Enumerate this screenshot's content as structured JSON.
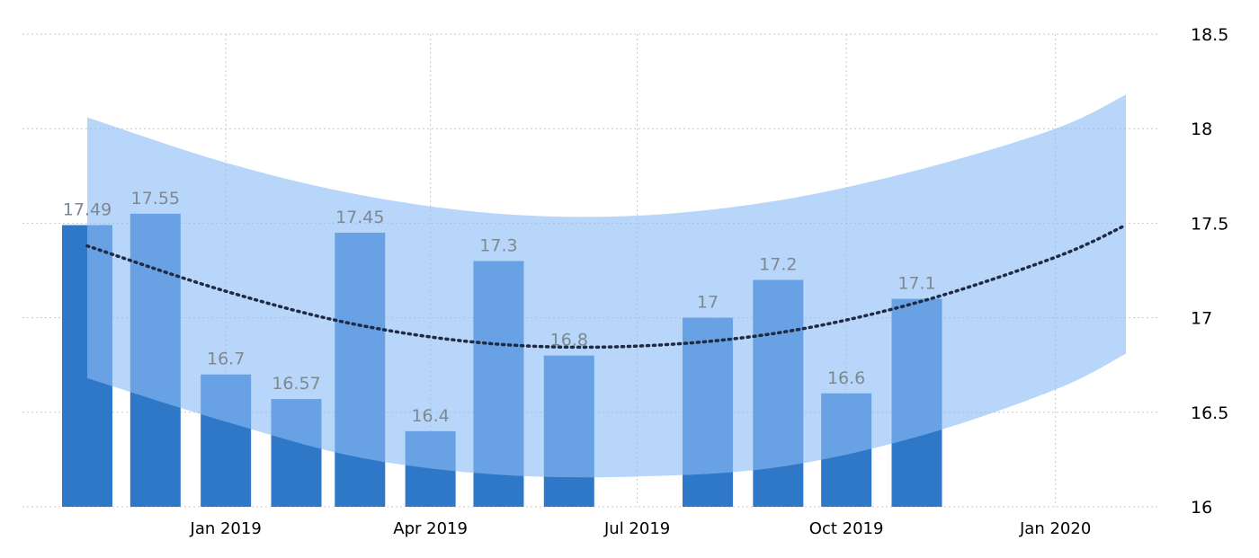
{
  "chart_data": {
    "type": "bar",
    "title": "",
    "xlabel": "",
    "ylabel": "",
    "ylim": [
      16,
      18.5
    ],
    "y_ticks": [
      "16",
      "16.5",
      "17",
      "17.5",
      "18",
      "18.5"
    ],
    "y_tick_values": [
      16,
      16.5,
      17,
      17.5,
      18,
      18.5
    ],
    "y_axis_position": "right",
    "grid": true,
    "legend": "none",
    "x_range": [
      "2018-11-01",
      "2020-02-01"
    ],
    "x_ticks": [
      {
        "label": "Jan 2019",
        "date": "2019-01-01"
      },
      {
        "label": "Apr 2019",
        "date": "2019-04-01"
      },
      {
        "label": "Jul 2019",
        "date": "2019-07-01"
      },
      {
        "label": "Oct 2019",
        "date": "2019-10-01"
      },
      {
        "label": "Jan 2020",
        "date": "2020-01-01"
      }
    ],
    "series": [
      {
        "type": "bar",
        "x": [
          "2018-11-01",
          "2018-12-01",
          "2019-01-01",
          "2019-02-01",
          "2019-03-01",
          "2019-04-01",
          "2019-05-01",
          "2019-06-01",
          "2019-08-01",
          "2019-09-01",
          "2019-10-01",
          "2019-11-01"
        ],
        "values": [
          17.49,
          17.55,
          16.7,
          16.57,
          17.45,
          16.4,
          17.3,
          16.8,
          17,
          17.2,
          16.6,
          17.1
        ],
        "labels": [
          "17.49",
          "17.55",
          "16.7",
          "16.57",
          "17.45",
          "16.4",
          "17.3",
          "16.8",
          "17",
          "17.2",
          "16.6",
          "17.1"
        ]
      },
      {
        "type": "line",
        "style": "dotted",
        "x": [
          "2018-11-01",
          "2019-01-01",
          "2019-03-01",
          "2019-05-01",
          "2019-07-01",
          "2019-09-01",
          "2019-11-01",
          "2020-01-01",
          "2020-02-01"
        ],
        "values": [
          17.38,
          17.14,
          16.96,
          16.86,
          16.85,
          16.92,
          17.08,
          17.32,
          17.49
        ]
      },
      {
        "type": "band",
        "x": [
          "2018-11-01",
          "2019-01-01",
          "2019-03-01",
          "2019-05-01",
          "2019-07-01",
          "2019-09-01",
          "2019-11-01",
          "2020-01-01",
          "2020-02-01"
        ],
        "upper": [
          18.06,
          17.82,
          17.65,
          17.55,
          17.54,
          17.62,
          17.78,
          18.0,
          18.18
        ],
        "lower": [
          16.68,
          16.45,
          16.26,
          16.17,
          16.16,
          16.21,
          16.37,
          16.62,
          16.81
        ]
      }
    ],
    "colors": {
      "bar": "#2f78c8",
      "band": "#8cbdf5",
      "trend": "#1f2a44",
      "grid": "#c8c8c8",
      "data_label": "#7f8891",
      "axis_text": "#000000"
    }
  }
}
